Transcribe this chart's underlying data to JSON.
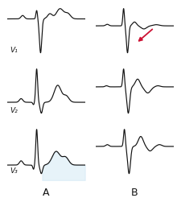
{
  "background_color": "#ffffff",
  "line_color": "#111111",
  "label_color": "#111111",
  "fig_width": 2.2,
  "fig_height": 2.46,
  "dpi": 100,
  "labels_A": [
    "V₁",
    "V₂",
    "V₃"
  ],
  "col_labels": [
    "A",
    "B"
  ],
  "arrow_color": "#cc1133"
}
